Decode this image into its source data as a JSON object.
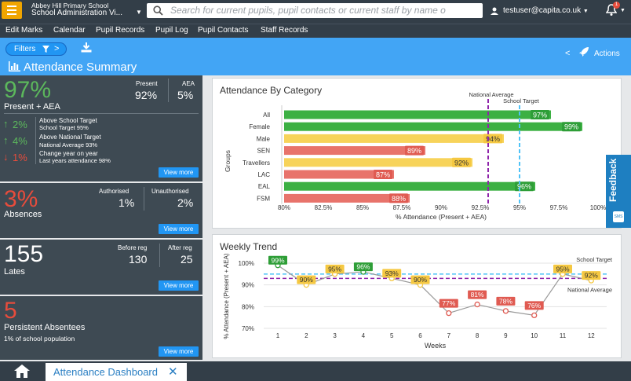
{
  "topbar": {
    "school_line1": "Abbey Hill Primary School",
    "school_line2": "School Administration Vi...",
    "search_placeholder": "Search for current pupils, pupil contacts or current staff by name o",
    "user": "testuser@capita.co.uk",
    "notification_count": "1"
  },
  "menu": [
    "Edit Marks",
    "Calendar",
    "Pupil Records",
    "Pupil Log",
    "Pupil Contacts",
    "Staff Records"
  ],
  "header": {
    "filters_label": "Filters",
    "actions_label": "Actions",
    "page_title": "Attendance Summary"
  },
  "present": {
    "big": "97%",
    "label": "Present + AEA",
    "present_head": "Present",
    "present_val": "92%",
    "aea_head": "AEA",
    "aea_val": "5%",
    "trends": [
      {
        "direction": "up",
        "value": "2%",
        "title": "Above School Target",
        "detail": "School Target 95%"
      },
      {
        "direction": "up",
        "value": "4%",
        "title": "Above National Target",
        "detail": "National Average 93%"
      },
      {
        "direction": "down",
        "value": "1%",
        "title": "Change year on year",
        "detail": "Last years attendance 98%"
      }
    ],
    "view_more": "View more"
  },
  "absences": {
    "big": "3%",
    "label": "Absences",
    "auth_head": "Authorised",
    "auth_val": "1%",
    "unauth_head": "Unauthorised",
    "unauth_val": "2%",
    "view_more": "View more"
  },
  "lates": {
    "big": "155",
    "label": "Lates",
    "before_head": "Before reg",
    "before_val": "130",
    "after_head": "After reg",
    "after_val": "25",
    "view_more": "View more"
  },
  "persistent": {
    "big": "5",
    "label": "Persistent Absentees",
    "detail": "1% of school population",
    "view_more": "View more"
  },
  "feedback_label": "Feedback",
  "feedback_sms": "SMS",
  "bottom": {
    "tab_label": "Attendance Dashboard"
  },
  "colors": {
    "green": "#3cb043",
    "red": "#e8736b",
    "yellow": "#f7d35a",
    "blue": "#42a5f5"
  },
  "chart_data": [
    {
      "type": "bar",
      "title": "Attendance By Category",
      "ylabel": "Groups",
      "xlabel": "% Attendance (Present + AEA)",
      "categories": [
        "All",
        "Female",
        "Male",
        "SEN",
        "Travellers",
        "LAC",
        "EAL",
        "FSM"
      ],
      "values": [
        97,
        99,
        94,
        89,
        92,
        87,
        96,
        88
      ],
      "value_labels": [
        "97%",
        "99%",
        "94%",
        "89%",
        "92%",
        "87%",
        "96%",
        "88%"
      ],
      "bar_colors": [
        "green",
        "green",
        "yellow",
        "red",
        "yellow",
        "red",
        "green",
        "red"
      ],
      "xlim": [
        80,
        100
      ],
      "x_ticks": [
        "80%",
        "82.5%",
        "85%",
        "87.5%",
        "90%",
        "92.5%",
        "95%",
        "97.5%",
        "100%"
      ],
      "reference_lines": [
        {
          "name": "National Average",
          "value": 93
        },
        {
          "name": "School Target",
          "value": 95
        }
      ]
    },
    {
      "type": "line",
      "title": "Weekly Trend",
      "xlabel": "Weeks",
      "ylabel": "% Attendance (Present + AEA)",
      "x": [
        1,
        2,
        3,
        4,
        5,
        6,
        7,
        8,
        9,
        10,
        11,
        12
      ],
      "values": [
        99,
        90,
        95,
        96,
        93,
        90,
        77,
        81,
        78,
        76,
        95,
        92
      ],
      "value_labels": [
        "99%",
        "90%",
        "95%",
        "96%",
        "93%",
        "90%",
        "77%",
        "81%",
        "78%",
        "76%",
        "95%",
        "92%"
      ],
      "point_colors": [
        "green",
        "yellow",
        "yellow",
        "green",
        "yellow",
        "yellow",
        "red",
        "red",
        "red",
        "red",
        "yellow",
        "yellow"
      ],
      "ylim": [
        70,
        100
      ],
      "y_ticks": [
        "70%",
        "80%",
        "90%",
        "100%"
      ],
      "reference_lines": [
        {
          "name": "School Target",
          "value": 95
        },
        {
          "name": "National Average",
          "value": 93
        }
      ]
    }
  ]
}
